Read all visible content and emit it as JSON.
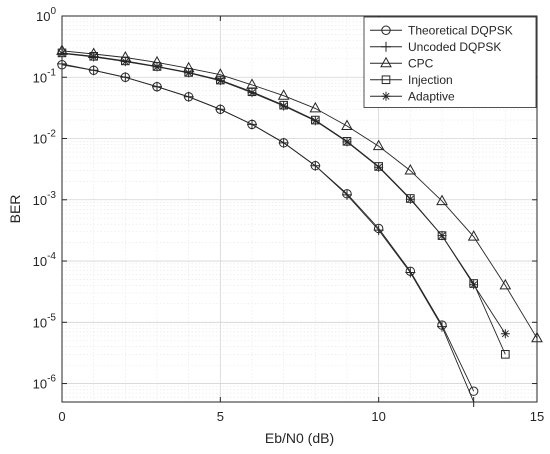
{
  "chart_data": {
    "type": "line",
    "xlabel": "Eb/N0 (dB)",
    "ylabel": "BER",
    "xlim": [
      0,
      15
    ],
    "ylim": [
      5e-07,
      1
    ],
    "yscale": "log",
    "grid": true,
    "legend_position": "top-right",
    "x_ticks": [
      {
        "value": 0,
        "label": "0"
      },
      {
        "value": 5,
        "label": "5"
      },
      {
        "value": 10,
        "label": "10"
      },
      {
        "value": 15,
        "label": "15"
      }
    ],
    "y_ticks": [
      {
        "value": 1e-06,
        "base": "10",
        "exp": "-6"
      },
      {
        "value": 1e-05,
        "base": "10",
        "exp": "-5"
      },
      {
        "value": 0.0001,
        "base": "10",
        "exp": "-4"
      },
      {
        "value": 0.001,
        "base": "10",
        "exp": "-3"
      },
      {
        "value": 0.01,
        "base": "10",
        "exp": "-2"
      },
      {
        "value": 0.1,
        "base": "10",
        "exp": "-1"
      },
      {
        "value": 1,
        "base": "10",
        "exp": "0"
      }
    ],
    "series": [
      {
        "name": "Theoretical DQPSK",
        "marker": "circle",
        "x": [
          0,
          1,
          2,
          3,
          4,
          5,
          6,
          7,
          8,
          9,
          10,
          11,
          12,
          13
        ],
        "y": [
          0.16,
          0.13,
          0.1,
          0.07,
          0.048,
          0.03,
          0.017,
          0.0085,
          0.0036,
          0.00125,
          0.00034,
          6.8e-05,
          9e-06,
          7.5e-07
        ]
      },
      {
        "name": "Uncoded DQPSK",
        "marker": "plus",
        "x": [
          0,
          1,
          2,
          3,
          4,
          5,
          6,
          7,
          8,
          9,
          10,
          11,
          12,
          13
        ],
        "y": [
          0.165,
          0.13,
          0.1,
          0.07,
          0.048,
          0.03,
          0.017,
          0.0085,
          0.0036,
          0.0012,
          0.00032,
          6.5e-05,
          8.5e-06,
          5e-07
        ]
      },
      {
        "name": "CPC",
        "marker": "triangle",
        "x": [
          0,
          1,
          2,
          3,
          4,
          5,
          6,
          7,
          8,
          9,
          10,
          11,
          12,
          13,
          14,
          15
        ],
        "y": [
          0.27,
          0.24,
          0.21,
          0.175,
          0.14,
          0.11,
          0.075,
          0.05,
          0.031,
          0.016,
          0.0075,
          0.003,
          0.00095,
          0.00025,
          4e-05,
          5.5e-06
        ]
      },
      {
        "name": "Injection",
        "marker": "square",
        "x": [
          0,
          1,
          2,
          3,
          4,
          5,
          6,
          7,
          8,
          9,
          10,
          11,
          12,
          13,
          14
        ],
        "y": [
          0.25,
          0.22,
          0.185,
          0.15,
          0.12,
          0.09,
          0.058,
          0.035,
          0.02,
          0.009,
          0.0035,
          0.00105,
          0.00026,
          4.3e-05,
          3e-06
        ]
      },
      {
        "name": "Adaptive",
        "marker": "asterisk",
        "x": [
          0,
          1,
          2,
          3,
          4,
          5,
          6,
          7,
          8,
          9,
          10,
          11,
          12,
          13,
          14
        ],
        "y": [
          0.245,
          0.215,
          0.18,
          0.148,
          0.118,
          0.088,
          0.056,
          0.034,
          0.0195,
          0.0088,
          0.0034,
          0.00102,
          0.00026,
          4.1e-05,
          6.5e-06
        ]
      }
    ]
  }
}
